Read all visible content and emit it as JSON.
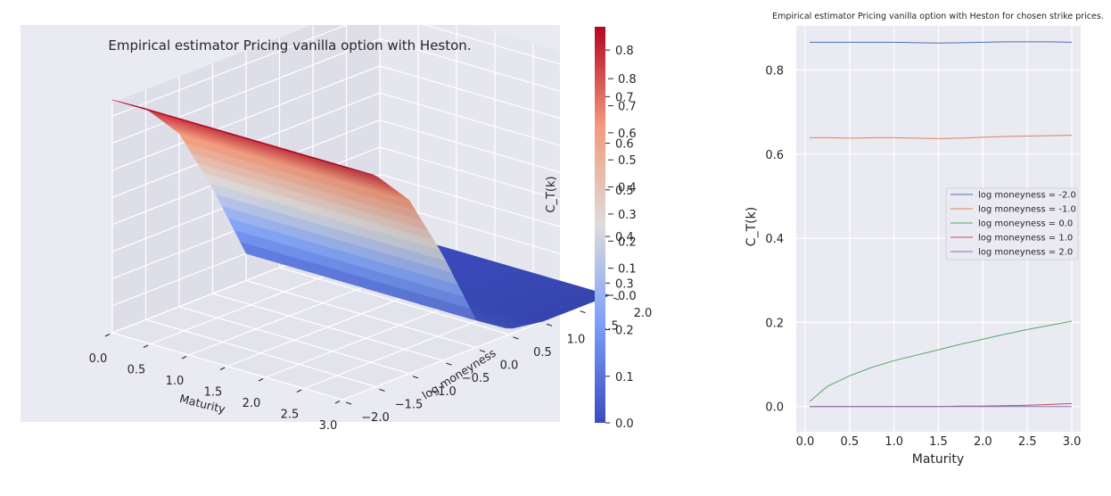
{
  "chart_data": [
    {
      "type": "surface3d",
      "title": "Empirical estimator Pricing vanilla option with Heston.",
      "xlabel": "Maturity",
      "ylabel": "log moneyness",
      "zlabel": "C_T(k)",
      "xlim": [
        0.0,
        3.0
      ],
      "ylim": [
        -2.0,
        2.0
      ],
      "zlim": [
        0.0,
        0.85
      ],
      "xticks": [
        "0.0",
        "0.5",
        "1.0",
        "1.5",
        "2.0",
        "2.5",
        "3.0"
      ],
      "yticks": [
        "−2.0",
        "−1.5",
        "−1.0",
        "−0.5",
        "0.0",
        "0.5",
        "1.0",
        "1.5",
        "2.0"
      ],
      "zticks": [
        "0.0",
        "0.1",
        "0.2",
        "0.3",
        "0.4",
        "0.5",
        "0.6",
        "0.7",
        "0.8"
      ],
      "colormap": "coolwarm",
      "colorbar": {
        "range": [
          0.0,
          0.85
        ],
        "ticks": [
          "0.0",
          "0.1",
          "0.2",
          "0.3",
          "0.4",
          "0.5",
          "0.6",
          "0.7",
          "0.8"
        ]
      },
      "surface_profile": {
        "log_moneyness": [
          -2.0,
          -1.5,
          -1.0,
          -0.5,
          0.0,
          0.5,
          1.0,
          1.5,
          2.0
        ],
        "value": [
          0.86,
          0.78,
          0.64,
          0.39,
          0.1,
          0.02,
          0.0,
          0.0,
          0.0
        ]
      }
    },
    {
      "type": "line",
      "title": "Empirical estimator Pricing vanilla option with Heston for chosen strike prices.",
      "xlabel": "Maturity",
      "ylabel": "C_T(k)",
      "xlim": [
        -0.1,
        3.1
      ],
      "ylim": [
        -0.06,
        0.905
      ],
      "xticks": [
        "0.0",
        "0.5",
        "1.0",
        "1.5",
        "2.0",
        "2.5",
        "3.0"
      ],
      "yticks": [
        "0.0",
        "0.2",
        "0.4",
        "0.6",
        "0.8"
      ],
      "grid": true,
      "legend_position": "center-right",
      "x": [
        0.05,
        0.25,
        0.5,
        0.75,
        1.0,
        1.25,
        1.5,
        1.75,
        2.0,
        2.25,
        2.5,
        2.75,
        3.0
      ],
      "series": [
        {
          "name": "log moneyness = -2.0",
          "color": "#4c72b0",
          "values": [
            0.866,
            0.866,
            0.866,
            0.866,
            0.866,
            0.865,
            0.864,
            0.865,
            0.866,
            0.867,
            0.867,
            0.867,
            0.866
          ]
        },
        {
          "name": "log moneyness = -1.0",
          "color": "#dd8452",
          "values": [
            0.639,
            0.639,
            0.638,
            0.639,
            0.639,
            0.638,
            0.637,
            0.638,
            0.64,
            0.642,
            0.643,
            0.644,
            0.645
          ]
        },
        {
          "name": "log moneyness = 0.0",
          "color": "#55a868",
          "values": [
            0.012,
            0.048,
            0.073,
            0.093,
            0.109,
            0.122,
            0.135,
            0.148,
            0.16,
            0.172,
            0.183,
            0.193,
            0.203
          ]
        },
        {
          "name": "log moneyness = 1.0",
          "color": "#c44e52",
          "values": [
            0.0,
            0.0,
            0.0,
            0.0,
            0.0,
            0.0,
            0.0,
            0.001,
            0.001,
            0.002,
            0.003,
            0.005,
            0.007
          ]
        },
        {
          "name": "log moneyness = 2.0",
          "color": "#8172b3",
          "values": [
            0.0,
            0.0,
            0.0,
            0.0,
            0.0,
            0.0,
            0.0,
            0.0,
            0.0,
            0.0,
            0.0,
            0.0,
            0.0
          ]
        }
      ]
    }
  ]
}
